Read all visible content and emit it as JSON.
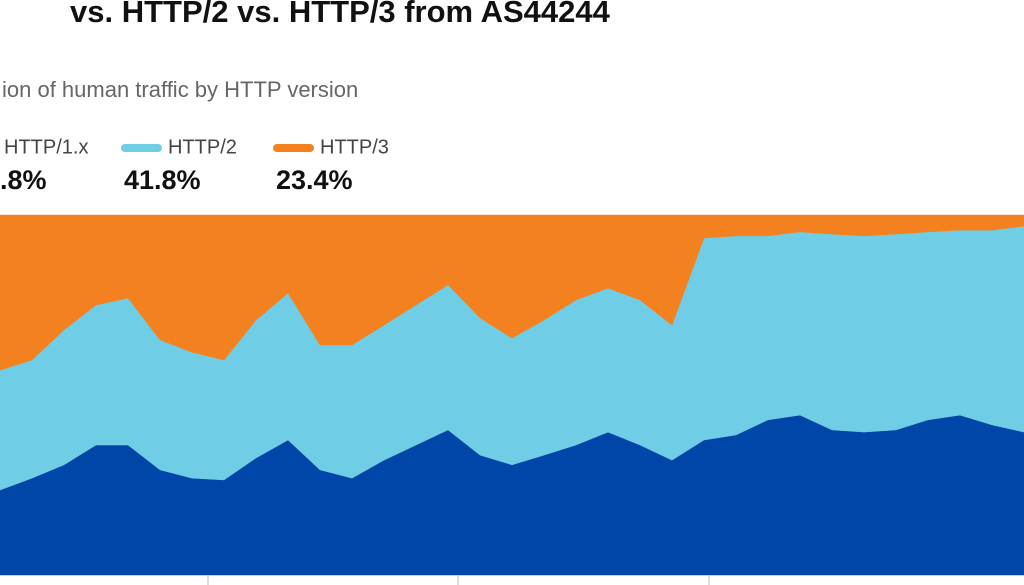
{
  "chart_data": {
    "type": "area",
    "stacked": true,
    "title": "vs. HTTP/2 vs. HTTP/3 from AS44244",
    "subtitle": "ion of human traffic by HTTP version",
    "ylim": [
      0,
      100
    ],
    "categories": [
      null,
      null,
      null,
      null,
      null,
      null,
      null,
      null,
      null,
      null,
      null,
      null,
      null,
      null,
      null,
      null,
      null,
      null,
      null,
      null,
      null,
      null,
      null,
      null,
      null,
      null,
      null,
      null,
      null,
      null,
      null,
      null,
      null
    ],
    "series": [
      {
        "name": "HTTP/1.x",
        "color": "#0046a8",
        "legend_value": ".8%",
        "values": [
          23.6,
          26.9,
          30.6,
          36.1,
          36.1,
          29.2,
          26.9,
          26.4,
          32.5,
          37.5,
          29.2,
          26.9,
          31.9,
          36.1,
          40.3,
          33.3,
          30.6,
          33.3,
          36.1,
          39.7,
          36.1,
          31.9,
          37.5,
          38.9,
          43.1,
          44.4,
          40.3,
          39.7,
          40.3,
          43.1,
          44.4,
          41.7,
          39.7
        ]
      },
      {
        "name": "HTTP/2",
        "color": "#70cde6",
        "legend_value": "41.8%",
        "values": [
          33.3,
          32.8,
          37.5,
          38.9,
          40.8,
          36.1,
          35.0,
          33.3,
          38.3,
          40.8,
          34.7,
          37.0,
          37.5,
          38.9,
          40.3,
          38.1,
          35.2,
          37.5,
          40.3,
          40.0,
          40.3,
          37.5,
          56.1,
          55.3,
          51.1,
          50.9,
          54.4,
          54.5,
          54.4,
          52.2,
          51.4,
          54.1,
          57.2
        ]
      },
      {
        "name": "HTTP/3",
        "color": "#f48120",
        "legend_value": "23.4%",
        "values": [
          43.1,
          40.3,
          31.9,
          25.0,
          23.1,
          34.7,
          38.1,
          40.3,
          29.2,
          21.7,
          36.1,
          36.1,
          30.6,
          25.0,
          19.4,
          28.6,
          34.2,
          29.2,
          23.6,
          20.3,
          23.6,
          30.6,
          6.4,
          5.8,
          5.8,
          4.7,
          5.3,
          5.8,
          5.3,
          4.7,
          4.2,
          4.2,
          3.1
        ]
      }
    ]
  }
}
